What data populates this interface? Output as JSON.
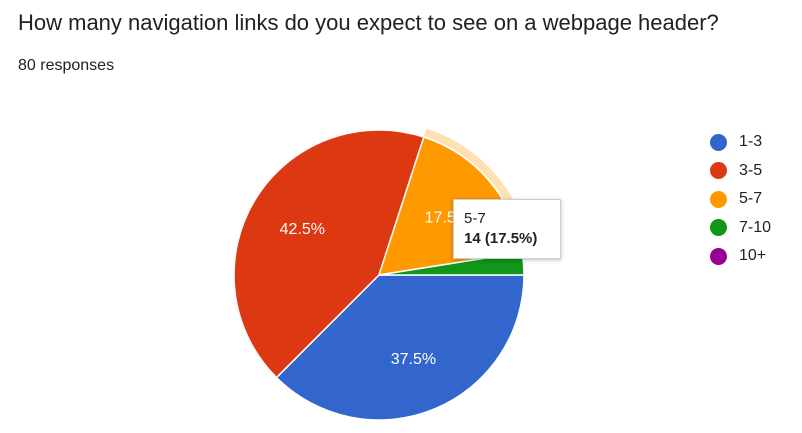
{
  "header": {
    "question": "How many navigation links do you expect to see on a webpage header?",
    "responses": "80 responses"
  },
  "chart_data": {
    "type": "pie",
    "total": 80,
    "slices": [
      {
        "name": "1-3",
        "count": 30,
        "percent": 37.5,
        "label": "37.5%",
        "color": "#3366cc"
      },
      {
        "name": "3-5",
        "count": 34,
        "percent": 42.5,
        "label": "42.5%",
        "color": "#dc3912"
      },
      {
        "name": "5-7",
        "count": 14,
        "percent": 17.5,
        "label": "17.5%",
        "color": "#ff9900"
      },
      {
        "name": "7-10",
        "count": 2,
        "percent": 2.5,
        "label": "",
        "color": "#109618"
      },
      {
        "name": "10+",
        "count": 0,
        "percent": 0,
        "label": "",
        "color": "#990099"
      }
    ],
    "highlighted_slice": "5-7",
    "legend_position": "right"
  },
  "legend": {
    "items": [
      {
        "label": "1-3",
        "color": "#3366cc"
      },
      {
        "label": "3-5",
        "color": "#dc3912"
      },
      {
        "label": "5-7",
        "color": "#ff9900"
      },
      {
        "label": "7-10",
        "color": "#109618"
      },
      {
        "label": "10+",
        "color": "#990099"
      }
    ]
  },
  "tooltip": {
    "category": "5-7",
    "value": "14 (17.5%)"
  }
}
